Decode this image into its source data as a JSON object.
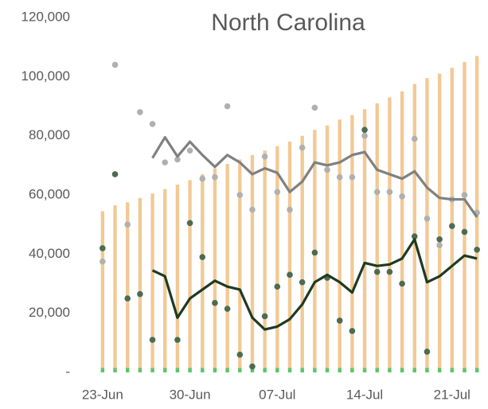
{
  "chart_data": {
    "type": "combo",
    "title": "North Carolina",
    "categories": [
      "23-Jun",
      null,
      null,
      null,
      null,
      null,
      null,
      "30-Jun",
      null,
      null,
      null,
      null,
      null,
      null,
      "07-Jul",
      null,
      null,
      null,
      null,
      null,
      null,
      "14-Jul",
      null,
      null,
      null,
      null,
      null,
      null,
      "21-Jul",
      null,
      null
    ],
    "ylim": [
      0,
      120000
    ],
    "yticks": [
      {
        "value": 0,
        "label": "-"
      },
      {
        "value": 20000,
        "label": "20,000"
      },
      {
        "value": 40000,
        "label": "40,000"
      },
      {
        "value": 60000,
        "label": "60,000"
      },
      {
        "value": 80000,
        "label": "80,000"
      },
      {
        "value": 100000,
        "label": "100,000"
      },
      {
        "value": 120000,
        "label": "120,000"
      }
    ],
    "grid": false,
    "series": [
      {
        "type": "bar",
        "color": "#f2c995",
        "values": [
          54500,
          56500,
          57500,
          59000,
          60500,
          62000,
          63500,
          65000,
          67000,
          69000,
          70500,
          72000,
          73500,
          75000,
          76500,
          78000,
          80000,
          82000,
          83500,
          85500,
          87000,
          89000,
          91000,
          93000,
          95000,
          97500,
          99500,
          101000,
          103000,
          105000,
          107000
        ]
      },
      {
        "type": "bar",
        "color": "#5cc46e",
        "values": [
          1500,
          1500,
          1500,
          1500,
          1500,
          1500,
          1500,
          1500,
          1500,
          1500,
          1500,
          1500,
          1500,
          1500,
          1500,
          1500,
          1500,
          1500,
          1500,
          1500,
          1500,
          1500,
          1500,
          1500,
          1500,
          1500,
          1500,
          1500,
          1500,
          1500,
          1500
        ]
      },
      {
        "type": "scatter",
        "color": "#b0b0b0",
        "values": [
          37500,
          104000,
          50000,
          88000,
          84000,
          71000,
          72000,
          75000,
          65500,
          66000,
          90000,
          60000,
          55000,
          73000,
          61000,
          55000,
          76000,
          89500,
          68500,
          66000,
          66000,
          80000,
          61000,
          61000,
          59500,
          79000,
          52000,
          43000,
          58500,
          60000,
          54000
        ]
      },
      {
        "type": "scatter",
        "color": "#4d6b52",
        "values": [
          42000,
          67000,
          25000,
          26500,
          11000,
          null,
          11000,
          50500,
          39000,
          23500,
          21500,
          6000,
          2000,
          19000,
          29000,
          33000,
          30500,
          40500,
          32000,
          17500,
          14000,
          82000,
          34000,
          34000,
          30000,
          46000,
          7000,
          45000,
          49500,
          47500,
          41500
        ]
      },
      {
        "type": "line",
        "color": "#808080",
        "values": [
          null,
          null,
          null,
          null,
          72500,
          79500,
          73000,
          78000,
          73500,
          69500,
          73500,
          71000,
          67000,
          69000,
          67500,
          61000,
          64500,
          71000,
          70000,
          71000,
          73500,
          74500,
          68500,
          67000,
          65500,
          68000,
          62500,
          59000,
          58500,
          58500,
          52500
        ]
      },
      {
        "type": "line",
        "color": "#1e3a22",
        "values": [
          null,
          null,
          null,
          null,
          34500,
          32500,
          18500,
          25000,
          28000,
          31000,
          29000,
          28000,
          18500,
          14500,
          15500,
          18000,
          23000,
          30500,
          33000,
          30500,
          27000,
          37000,
          36000,
          36500,
          38500,
          45000,
          30500,
          32500,
          36000,
          39500,
          38500
        ]
      }
    ]
  }
}
